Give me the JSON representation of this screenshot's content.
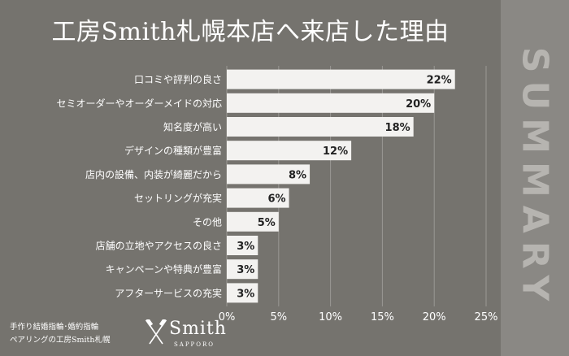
{
  "title": "工房Smith札幌本店へ来店した理由",
  "sidebar": {
    "label": "SUMMARY"
  },
  "footer": {
    "line1": "手作り結婚指輪･婚約指輪",
    "line2": "ペアリングの工房Smith札幌",
    "logo_name": "Smith",
    "logo_sub": "SAPPORO"
  },
  "colors": {
    "background": "#75736e",
    "sidebar": "#8a8884",
    "bar": "#f3f2f0",
    "text": "#ffffff",
    "grid": "#9a9894"
  },
  "chart_data": {
    "type": "bar",
    "orientation": "horizontal",
    "categories": [
      "口コミや評判の良さ",
      "セミオーダーやオーダーメイドの対応",
      "知名度が高い",
      "デザインの種類が豊富",
      "店内の設備、内装が綺麗だから",
      "セットリングが充実",
      "その他",
      "店舗の立地やアクセスの良さ",
      "キャンペーンや特典が豊富",
      "アフターサービスの充実"
    ],
    "values": [
      22,
      20,
      18,
      12,
      8,
      6,
      5,
      3,
      3,
      3
    ],
    "value_labels": [
      "22%",
      "20%",
      "18%",
      "12%",
      "8%",
      "6%",
      "5%",
      "3%",
      "3%",
      "3%"
    ],
    "xlim": [
      0,
      25
    ],
    "xticks": [
      "0%",
      "5%",
      "10%",
      "15%",
      "20%",
      "25%"
    ],
    "grid": true
  }
}
